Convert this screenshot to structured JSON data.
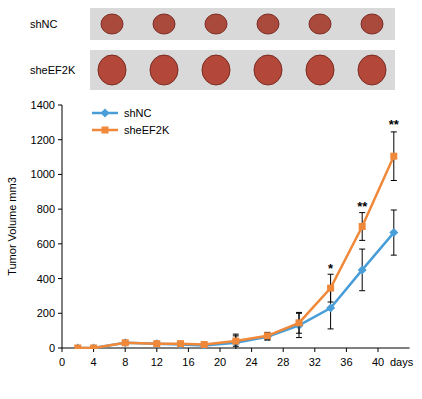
{
  "chart_data": {
    "type": "line",
    "image_labels": [
      "shNC",
      "sheEF2K"
    ],
    "y_label": "Tumor Volume mm3",
    "x_label": "days",
    "x": [
      2,
      4,
      8,
      12,
      15,
      18,
      22,
      26,
      30,
      34,
      38,
      42
    ],
    "series": [
      {
        "name": "shNC",
        "color": "#4a9ed8",
        "marker": "diamond",
        "values": [
          0,
          0,
          30,
          25,
          20,
          15,
          30,
          65,
          130,
          230,
          450,
          665
        ],
        "errors": [
          0,
          0,
          10,
          10,
          8,
          8,
          50,
          20,
          70,
          120,
          120,
          130
        ]
      },
      {
        "name": "sheEF2K",
        "color": "#f0883a",
        "marker": "square",
        "values": [
          0,
          0,
          30,
          25,
          25,
          20,
          40,
          70,
          145,
          345,
          700,
          1105
        ],
        "errors": [
          0,
          0,
          10,
          10,
          10,
          8,
          30,
          20,
          60,
          80,
          80,
          140
        ]
      }
    ],
    "annotations": [
      {
        "text": "*",
        "x": 34,
        "y": 430
      },
      {
        "text": "**",
        "x": 38,
        "y": 790
      },
      {
        "text": "**",
        "x": 42,
        "y": 1260
      }
    ],
    "xlim": [
      0,
      44
    ],
    "xticks": [
      0,
      4,
      8,
      12,
      16,
      20,
      24,
      28,
      32,
      36,
      40
    ],
    "ylim": [
      0,
      1400
    ],
    "yticks": [
      0,
      200,
      400,
      600,
      800,
      1000,
      1200,
      1400
    ],
    "legend": "top-left",
    "grid": false
  }
}
